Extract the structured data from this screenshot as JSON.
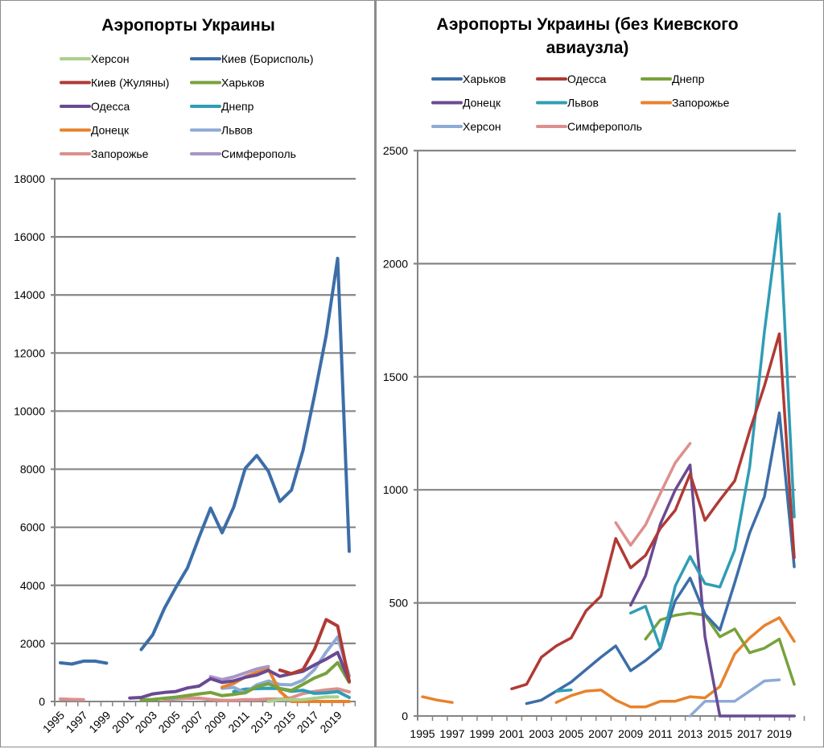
{
  "chart_data": [
    {
      "type": "line",
      "title": "Аэропорты Украины",
      "xlabel": "",
      "ylabel": "",
      "ylim": [
        0,
        18000
      ],
      "yticks": [
        0,
        2000,
        4000,
        6000,
        8000,
        10000,
        12000,
        14000,
        16000,
        18000
      ],
      "x": [
        1995,
        1996,
        1997,
        1998,
        1999,
        2000,
        2001,
        2002,
        2003,
        2004,
        2005,
        2006,
        2007,
        2008,
        2009,
        2010,
        2011,
        2012,
        2013,
        2014,
        2015,
        2016,
        2017,
        2018,
        2019,
        2020
      ],
      "xtick_labels": [
        "1995",
        "1997",
        "1999",
        "2001",
        "2003",
        "2005",
        "2007",
        "2009",
        "2011",
        "2013",
        "2015",
        "2017",
        "2019"
      ],
      "grid": true,
      "legend_position": "top",
      "series": [
        {
          "name": "Херсон",
          "color": "#a9cf8e",
          "values": [
            null,
            null,
            null,
            null,
            null,
            null,
            null,
            null,
            null,
            null,
            null,
            null,
            null,
            null,
            null,
            null,
            null,
            null,
            0,
            65,
            65,
            65,
            110,
            155,
            160,
            null
          ]
        },
        {
          "name": "Киев (Борисполь)",
          "color": "#3c6ea8",
          "values": [
            1330,
            1290,
            1390,
            1390,
            1320,
            null,
            null,
            1790,
            2300,
            3200,
            3930,
            4600,
            5650,
            6660,
            5810,
            6690,
            8030,
            8470,
            7930,
            6890,
            7280,
            8650,
            10550,
            12600,
            15260,
            5170
          ]
        },
        {
          "name": "Киев (Жуляны)",
          "color": "#b03a35",
          "values": [
            null,
            null,
            null,
            null,
            null,
            null,
            null,
            null,
            null,
            null,
            null,
            null,
            null,
            null,
            null,
            null,
            null,
            null,
            null,
            1080,
            960,
            1100,
            1800,
            2820,
            2600,
            700
          ]
        },
        {
          "name": "Харьков",
          "color": "#77a23c",
          "values": [
            null,
            null,
            null,
            null,
            null,
            null,
            null,
            55,
            70,
            110,
            150,
            205,
            260,
            310,
            200,
            245,
            300,
            510,
            610,
            450,
            380,
            590,
            810,
            970,
            1340,
            660
          ]
        },
        {
          "name": "Одесса",
          "color": "#6a4a92",
          "values": [
            null,
            null,
            null,
            null,
            null,
            null,
            120,
            140,
            260,
            310,
            345,
            465,
            530,
            785,
            655,
            710,
            830,
            910,
            1070,
            865,
            955,
            1040,
            1260,
            1460,
            1690,
            700
          ]
        },
        {
          "name": "Днепр",
          "color": "#2f9db5",
          "values": [
            null,
            null,
            null,
            null,
            null,
            null,
            null,
            null,
            null,
            null,
            null,
            null,
            null,
            null,
            null,
            340,
            425,
            445,
            455,
            445,
            350,
            385,
            280,
            300,
            340,
            140
          ]
        },
        {
          "name": "Донецк",
          "color": "#e8822c",
          "values": [
            null,
            null,
            null,
            null,
            null,
            null,
            null,
            null,
            null,
            null,
            null,
            null,
            null,
            null,
            490,
            620,
            850,
            1000,
            1110,
            350,
            0,
            0,
            0,
            0,
            0,
            0
          ]
        },
        {
          "name": "Львов",
          "color": "#8eaad6",
          "values": [
            null,
            null,
            null,
            null,
            null,
            null,
            null,
            null,
            null,
            110,
            115,
            null,
            null,
            null,
            455,
            485,
            300,
            575,
            705,
            585,
            570,
            735,
            1100,
            1700,
            2220,
            880
          ]
        },
        {
          "name": "Запорожье",
          "color": "#dd8f8c",
          "values": [
            85,
            70,
            60,
            null,
            null,
            null,
            null,
            null,
            null,
            60,
            90,
            110,
            115,
            70,
            40,
            40,
            65,
            65,
            85,
            80,
            130,
            275,
            345,
            400,
            435,
            330
          ]
        },
        {
          "name": "Симферополь",
          "color": "#a796c6",
          "values": [
            null,
            null,
            null,
            null,
            null,
            null,
            null,
            null,
            null,
            null,
            null,
            null,
            null,
            855,
            755,
            845,
            985,
            1120,
            1205,
            null,
            null,
            null,
            null,
            null,
            null,
            null
          ]
        }
      ]
    },
    {
      "type": "line",
      "title": "Аэропорты Украины (без Киевского авиаузла)",
      "title_lines": [
        "Аэропорты Украины (без Киевского",
        "авиаузла)"
      ],
      "xlabel": "",
      "ylabel": "",
      "ylim": [
        0,
        2500
      ],
      "yticks": [
        0,
        500,
        1000,
        1500,
        2000,
        2500
      ],
      "x": [
        1995,
        1996,
        1997,
        1998,
        1999,
        2000,
        2001,
        2002,
        2003,
        2004,
        2005,
        2006,
        2007,
        2008,
        2009,
        2010,
        2011,
        2012,
        2013,
        2014,
        2015,
        2016,
        2017,
        2018,
        2019,
        2020
      ],
      "xtick_labels": [
        "1995",
        "1997",
        "1999",
        "2001",
        "2003",
        "2005",
        "2007",
        "2009",
        "2011",
        "2013",
        "2015",
        "2017",
        "2019"
      ],
      "grid": true,
      "legend_position": "top",
      "series": [
        {
          "name": "Харьков",
          "color": "#3c6ea8",
          "values": [
            null,
            null,
            null,
            null,
            null,
            null,
            null,
            55,
            70,
            110,
            150,
            205,
            260,
            310,
            200,
            245,
            300,
            510,
            610,
            450,
            380,
            590,
            810,
            970,
            1340,
            660
          ]
        },
        {
          "name": "Одесса",
          "color": "#b03a35",
          "values": [
            null,
            null,
            null,
            null,
            null,
            null,
            120,
            140,
            260,
            310,
            345,
            465,
            530,
            785,
            655,
            710,
            830,
            910,
            1070,
            865,
            955,
            1040,
            1260,
            1460,
            1690,
            700
          ]
        },
        {
          "name": "Днепр",
          "color": "#77a23c",
          "values": [
            null,
            null,
            null,
            null,
            null,
            null,
            null,
            null,
            null,
            null,
            null,
            null,
            null,
            null,
            null,
            340,
            425,
            445,
            455,
            445,
            350,
            385,
            280,
            300,
            340,
            140
          ]
        },
        {
          "name": "Донецк",
          "color": "#6a4a92",
          "values": [
            null,
            null,
            null,
            null,
            null,
            null,
            null,
            null,
            null,
            null,
            null,
            null,
            null,
            null,
            490,
            620,
            850,
            1000,
            1110,
            350,
            0,
            0,
            0,
            0,
            0,
            0
          ]
        },
        {
          "name": "Львов",
          "color": "#2f9db5",
          "values": [
            null,
            null,
            null,
            null,
            null,
            null,
            null,
            null,
            null,
            110,
            115,
            null,
            null,
            null,
            455,
            485,
            300,
            575,
            705,
            585,
            570,
            735,
            1100,
            1700,
            2220,
            880
          ]
        },
        {
          "name": "Запорожье",
          "color": "#e8822c",
          "values": [
            85,
            70,
            60,
            null,
            null,
            null,
            null,
            null,
            null,
            60,
            90,
            110,
            115,
            70,
            40,
            40,
            65,
            65,
            85,
            80,
            130,
            275,
            345,
            400,
            435,
            330
          ]
        },
        {
          "name": "Херсон",
          "color": "#8eaad6",
          "values": [
            null,
            null,
            null,
            null,
            null,
            null,
            null,
            null,
            null,
            null,
            null,
            null,
            null,
            null,
            null,
            null,
            null,
            null,
            0,
            65,
            65,
            65,
            110,
            155,
            160,
            null
          ]
        },
        {
          "name": "Симферополь",
          "color": "#dd8f8c",
          "values": [
            null,
            null,
            null,
            null,
            null,
            null,
            null,
            null,
            null,
            null,
            null,
            null,
            null,
            855,
            755,
            845,
            985,
            1120,
            1205,
            null,
            null,
            null,
            null,
            null,
            null,
            null
          ]
        }
      ]
    }
  ]
}
